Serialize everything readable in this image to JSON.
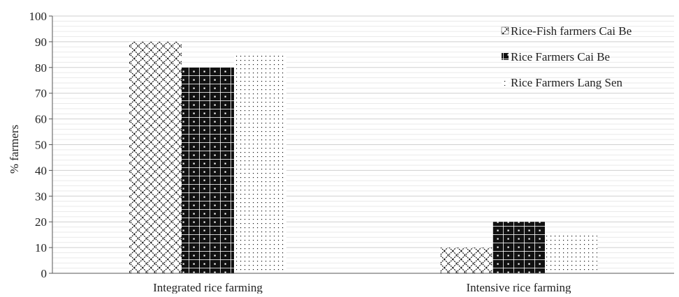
{
  "chart_data": {
    "type": "bar",
    "categories": [
      "Integrated rice farming",
      "Intensive rice farming"
    ],
    "series": [
      {
        "name": "Rice-Fish farmers Cai Be",
        "values": [
          90,
          10
        ],
        "pattern": "crosshatch"
      },
      {
        "name": "Rice Farmers Cai Be",
        "values": [
          80,
          20
        ],
        "pattern": "dotted-grid"
      },
      {
        "name": "Rice Farmers Lang Sen",
        "values": [
          85,
          15
        ],
        "pattern": "dots"
      }
    ],
    "xlabel": "",
    "ylabel": "% farmers",
    "ylim": [
      0,
      100
    ],
    "yticks": [
      0,
      10,
      20,
      30,
      40,
      50,
      60,
      70,
      80,
      90,
      100
    ],
    "grid": true,
    "legend_position": "top-right",
    "colors": {
      "ink": "#111111",
      "grid": "#d9d9d9",
      "axis": "#555555"
    }
  }
}
